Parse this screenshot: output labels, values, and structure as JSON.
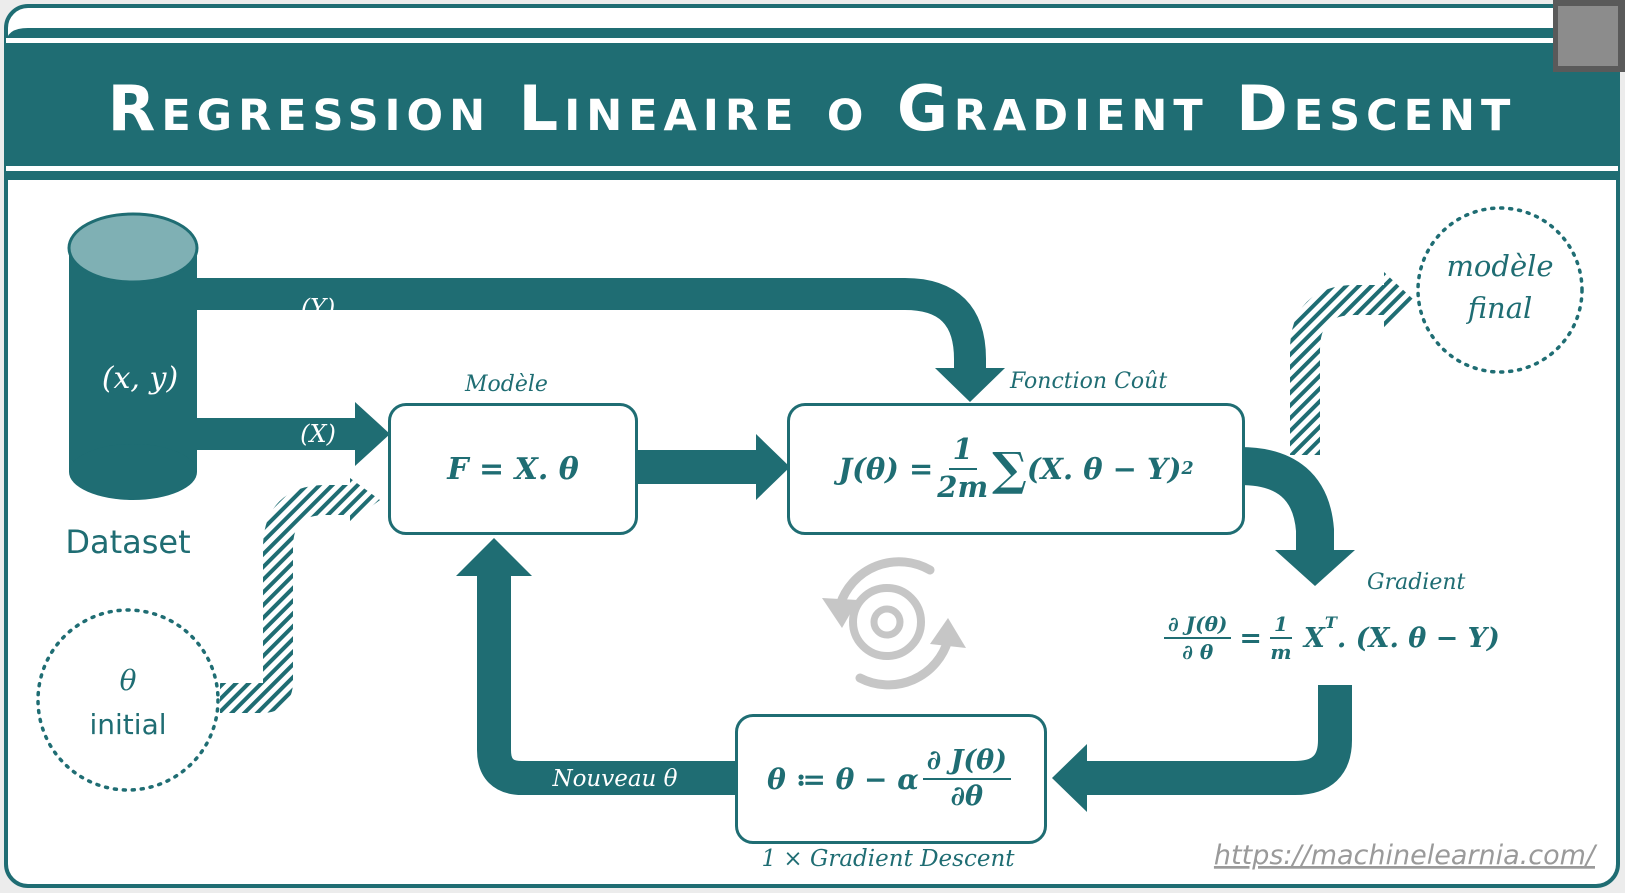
{
  "title": "Regression Lineaire o Gradient Descent",
  "colors": {
    "teal": "#1f6d73",
    "teal_light": "#7fb0b4",
    "white": "#ffffff",
    "gray": "#bdbdbd",
    "url_gray": "#9a9a9a"
  },
  "dataset": {
    "variables": "(x, y)",
    "label": "Dataset"
  },
  "arrows": {
    "y_label": "(Y)",
    "x_label": "(X)",
    "nouveau_label": "Nouveau θ"
  },
  "initial": {
    "symbol": "θ",
    "label": "initial"
  },
  "final": {
    "line1": "modèle",
    "line2": "final"
  },
  "modele": {
    "title": "Modèle",
    "formula": "F = X. θ"
  },
  "cout": {
    "title": "Fonction Coût",
    "lhs": "J(θ) =",
    "frac_num": "1",
    "frac_den": "2m",
    "sum": "∑",
    "rhs": "(X. θ  − Y)",
    "exp": "2"
  },
  "gradient": {
    "title": "Gradient",
    "lhs_num": "∂ J(θ)",
    "lhs_den": "∂ θ",
    "eq": "=",
    "frac_num": "1",
    "frac_den": "m",
    "x": "X",
    "xsup": "T",
    "rhs": ". (X. θ − Y)"
  },
  "update": {
    "lhs": "θ ≔ θ −  α",
    "frac_num": "∂ J(θ)",
    "frac_den": "∂θ",
    "caption": "1 × Gradient Descent"
  },
  "url": "https://machinelearnia.com/"
}
